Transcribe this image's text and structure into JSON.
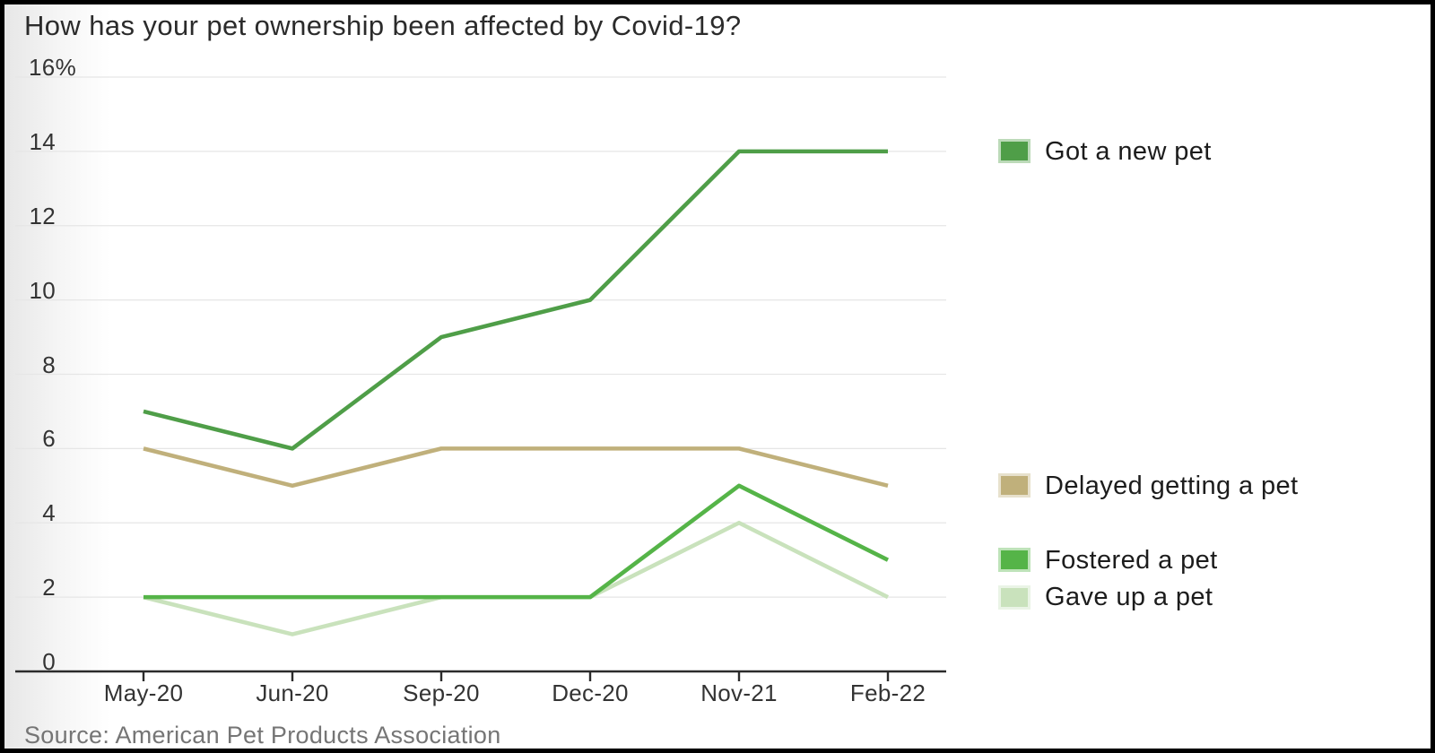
{
  "chart_data": {
    "type": "line",
    "title": "How has your pet ownership been affected by Covid-19?",
    "source": "Source: American Pet Products Association",
    "categories": [
      "May-20",
      "Jun-20",
      "Sep-20",
      "Dec-20",
      "Nov-21",
      "Feb-22"
    ],
    "series": [
      {
        "name": "Got a new pet",
        "color": "#4f9e48",
        "values": [
          7,
          6,
          9,
          10,
          14,
          14
        ]
      },
      {
        "name": "Delayed getting a pet",
        "color": "#c0b07b",
        "values": [
          6,
          5,
          6,
          6,
          6,
          5
        ]
      },
      {
        "name": "Fostered a pet",
        "color": "#55b448",
        "values": [
          2,
          2,
          2,
          2,
          5,
          3
        ]
      },
      {
        "name": "Gave up a pet",
        "color": "#c9e2bc",
        "values": [
          2,
          1,
          2,
          2,
          4,
          2
        ]
      }
    ],
    "ylim": [
      0,
      16
    ],
    "yticks": [
      {
        "value": 0,
        "label": "0"
      },
      {
        "value": 2,
        "label": "2"
      },
      {
        "value": 4,
        "label": "4"
      },
      {
        "value": 6,
        "label": "6"
      },
      {
        "value": 8,
        "label": "8"
      },
      {
        "value": 10,
        "label": "10"
      },
      {
        "value": 12,
        "label": "12"
      },
      {
        "value": 14,
        "label": "14"
      },
      {
        "value": 16,
        "label": "16%"
      }
    ],
    "grid": "horizontal",
    "legend_position": "right-of-plot-at-line-ends",
    "xlabel": "",
    "ylabel": ""
  },
  "colors": {
    "axis_line": "#2b2b2b",
    "grid_line": "#e6e6e6",
    "tick_label": "#333333",
    "title_text": "#2b2b2b",
    "source_text": "#757575",
    "legend_text": "#1c1c1c",
    "frame": "#000000",
    "background": "#ffffff"
  }
}
